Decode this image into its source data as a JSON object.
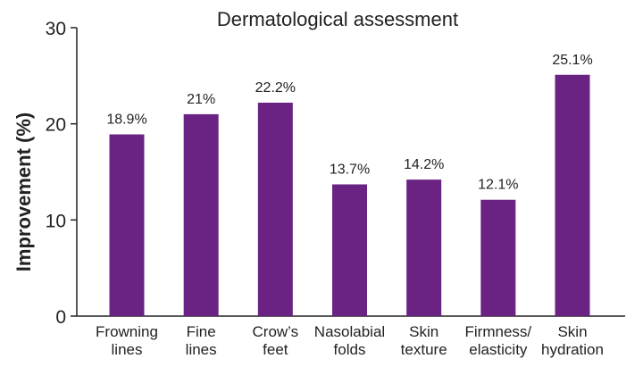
{
  "chart_data": {
    "type": "bar",
    "title": "Dermatological assessment",
    "ylabel": "Improvement (%)",
    "xlabel": "",
    "ylim": [
      0,
      30
    ],
    "yticks": [
      0,
      10,
      20,
      30
    ],
    "grid": false,
    "bar_color": "#6a2383",
    "categories": [
      [
        "Frowning",
        "lines"
      ],
      [
        "Fine",
        "lines"
      ],
      [
        "Crow’s",
        "feet"
      ],
      [
        "Nasolabial",
        "folds"
      ],
      [
        "Skin",
        "texture"
      ],
      [
        "Firmness/",
        "elasticity"
      ],
      [
        "Skin",
        "hydration"
      ]
    ],
    "values": [
      18.9,
      21,
      22.2,
      13.7,
      14.2,
      12.1,
      25.1
    ],
    "data_labels": [
      "18.9%",
      "21%",
      "22.2%",
      "13.7%",
      "14.2%",
      "12.1%",
      "25.1%"
    ]
  }
}
